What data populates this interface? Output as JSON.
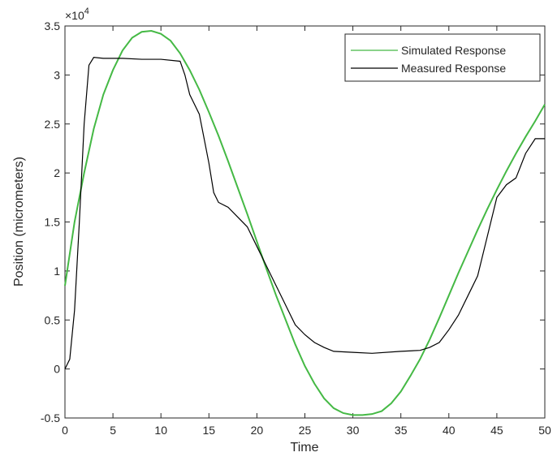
{
  "chart_data": {
    "type": "line",
    "xlabel": "Time",
    "ylabel": "Position (micrometers)",
    "y_multiplier": {
      "base": "×10",
      "exponent": "4"
    },
    "xlim": [
      0,
      50
    ],
    "xticks": [
      0,
      5,
      10,
      15,
      20,
      25,
      30,
      35,
      40,
      45,
      50
    ],
    "ylim": [
      -0.5,
      3.5
    ],
    "yticks": [
      -0.5,
      0,
      0.5,
      1,
      1.5,
      2,
      2.5,
      3,
      3.5
    ],
    "grid": false,
    "legend": "upper right",
    "series": [
      {
        "name": "Simulated Response",
        "color": "#45b945",
        "x": [
          0,
          1,
          2,
          3,
          4,
          5,
          6,
          7,
          8,
          9,
          10,
          11,
          12,
          13,
          14,
          15,
          16,
          17,
          18,
          19,
          20,
          21,
          22,
          23,
          24,
          25,
          26,
          27,
          28,
          29,
          30,
          31,
          32,
          33,
          34,
          35,
          36,
          37,
          38,
          39,
          40,
          41,
          42,
          43,
          44,
          45,
          46,
          47,
          48,
          49,
          50
        ],
        "values": [
          0.85,
          1.5,
          2.0,
          2.45,
          2.8,
          3.05,
          3.25,
          3.38,
          3.44,
          3.45,
          3.42,
          3.35,
          3.22,
          3.05,
          2.85,
          2.62,
          2.38,
          2.12,
          1.85,
          1.58,
          1.3,
          1.02,
          0.75,
          0.5,
          0.25,
          0.03,
          -0.15,
          -0.3,
          -0.4,
          -0.45,
          -0.47,
          -0.47,
          -0.46,
          -0.43,
          -0.35,
          -0.23,
          -0.07,
          0.1,
          0.3,
          0.52,
          0.75,
          0.98,
          1.2,
          1.42,
          1.63,
          1.83,
          2.02,
          2.2,
          2.37,
          2.53,
          2.7
        ]
      },
      {
        "name": "Measured Response",
        "color": "#000000",
        "x": [
          0,
          0.5,
          1,
          1.5,
          2,
          2.5,
          3,
          4,
          5,
          6,
          8,
          10,
          12,
          12.5,
          13,
          14,
          15,
          15.5,
          16,
          17,
          18,
          19,
          20,
          21,
          22,
          23,
          24,
          25,
          26,
          27,
          28,
          30,
          32,
          35,
          37,
          38,
          39,
          40,
          41,
          42,
          43,
          44,
          45,
          46,
          47,
          48,
          49,
          50
        ],
        "values": [
          0,
          0.1,
          0.6,
          1.5,
          2.5,
          3.1,
          3.18,
          3.17,
          3.17,
          3.17,
          3.16,
          3.16,
          3.14,
          3.0,
          2.8,
          2.6,
          2.1,
          1.8,
          1.7,
          1.65,
          1.55,
          1.45,
          1.25,
          1.05,
          0.85,
          0.65,
          0.45,
          0.35,
          0.27,
          0.22,
          0.18,
          0.17,
          0.16,
          0.18,
          0.19,
          0.22,
          0.27,
          0.4,
          0.55,
          0.75,
          0.95,
          1.35,
          1.75,
          1.88,
          1.95,
          2.2,
          2.35,
          2.35
        ]
      }
    ]
  }
}
